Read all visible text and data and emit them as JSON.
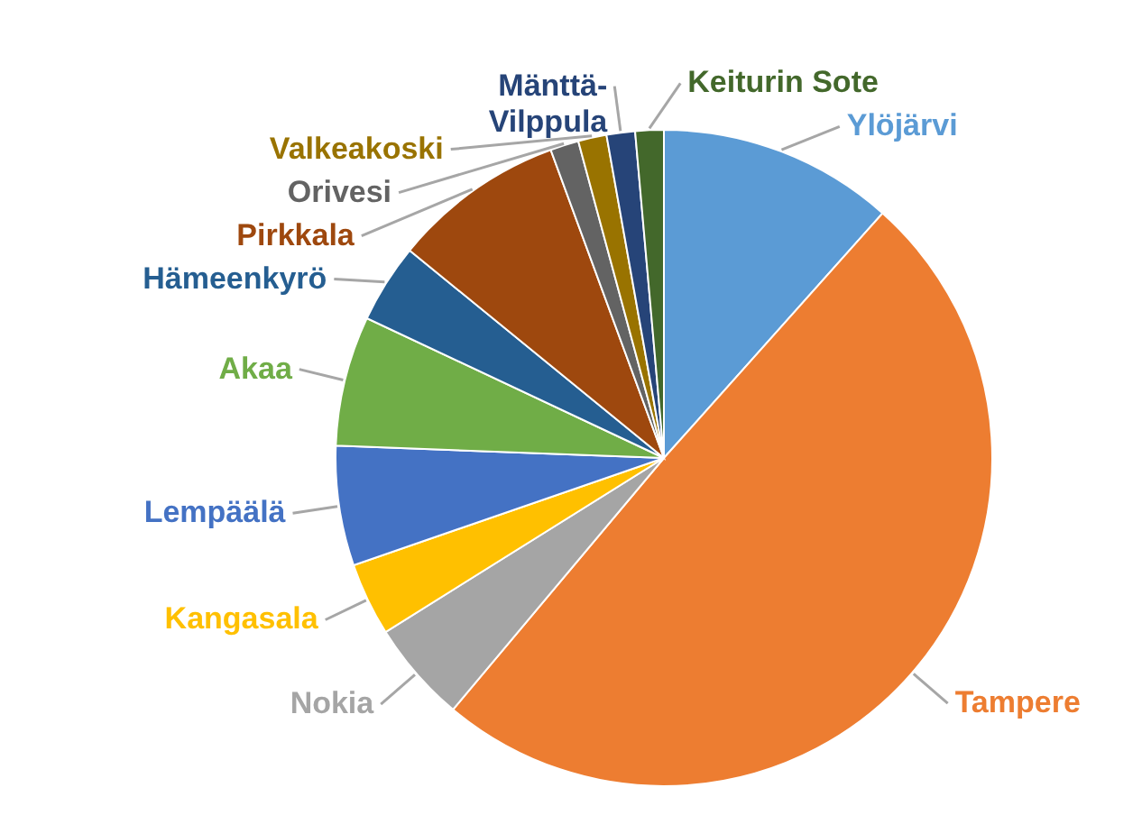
{
  "chart_data": {
    "type": "pie",
    "categories": [
      "Ylöjärvi",
      "Tampere",
      "Nokia",
      "Kangasala",
      "Lempäälä",
      "Akaa",
      "Hämeenkyrö",
      "Pirkkala",
      "Orivesi",
      "Valkeakoski",
      "Mänttä-Vilppula",
      "Keiturin Sote"
    ],
    "values": [
      11.6,
      49.5,
      5.0,
      3.6,
      5.9,
      6.4,
      3.9,
      8.5,
      1.4,
      1.4,
      1.4,
      1.4
    ],
    "colors": [
      "#5b9bd5",
      "#ed7d31",
      "#a5a5a5",
      "#ffc000",
      "#4472c4",
      "#70ad47",
      "#255e91",
      "#9e480e",
      "#636363",
      "#997300",
      "#264478",
      "#43682b"
    ]
  }
}
